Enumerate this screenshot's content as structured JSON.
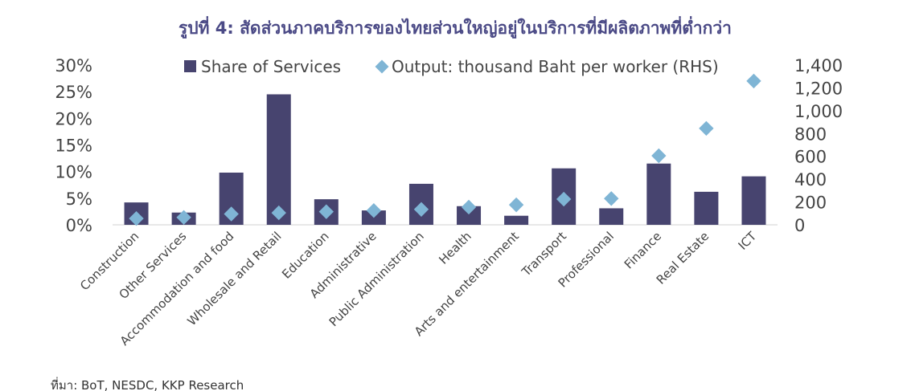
{
  "title": "รูปที่ 4: สัดส่วนภาคบริการของไทยส่วนใหญ่อยู่ในบริการที่มีผลิตภาพที่ต่ำกว่า",
  "source": "ที่มา: BoT, NESDC, KKP Research",
  "colors": {
    "bar": "#47446f",
    "marker": "#7fb5d5",
    "title": "#4b4a86",
    "text": "#444444"
  },
  "chart_data": {
    "type": "bar",
    "categories": [
      "Construction",
      "Other Services",
      "Accommodation and food",
      "Wholesale and Retail",
      "Education",
      "Administrative",
      "Public Administration",
      "Health",
      "Arts and entertainment",
      "Transport",
      "Professional",
      "Finance",
      "Real Estate",
      "ICT"
    ],
    "series": [
      {
        "name": "Share of Services",
        "type": "bar",
        "axis": "left",
        "values": [
          4.2,
          2.3,
          9.8,
          24.5,
          4.8,
          2.7,
          7.7,
          3.5,
          1.7,
          10.6,
          3.1,
          11.5,
          6.2,
          9.1
        ]
      },
      {
        "name": "Output: thousand Baht per worker (RHS)",
        "type": "scatter",
        "marker": "diamond",
        "axis": "right",
        "values": [
          55,
          65,
          95,
          105,
          115,
          125,
          135,
          155,
          175,
          225,
          230,
          605,
          845,
          1260
        ]
      }
    ],
    "y_left": {
      "ylim": [
        0,
        30
      ],
      "ticks": [
        0,
        5,
        10,
        15,
        20,
        25,
        30
      ],
      "tick_labels": [
        "0%",
        "5%",
        "10%",
        "15%",
        "20%",
        "25%",
        "30%"
      ]
    },
    "y_right": {
      "ylim": [
        0,
        1400
      ],
      "ticks": [
        0,
        200,
        400,
        600,
        800,
        1000,
        1200,
        1400
      ],
      "tick_labels": [
        "0",
        "200",
        "400",
        "600",
        "800",
        "1,000",
        "1,200",
        "1,400"
      ]
    },
    "legend": {
      "position": "top-center",
      "entries": [
        "Share of Services",
        "Output: thousand Baht per worker (RHS)"
      ]
    },
    "grid": false,
    "xlabel": "",
    "ylabel": ""
  }
}
